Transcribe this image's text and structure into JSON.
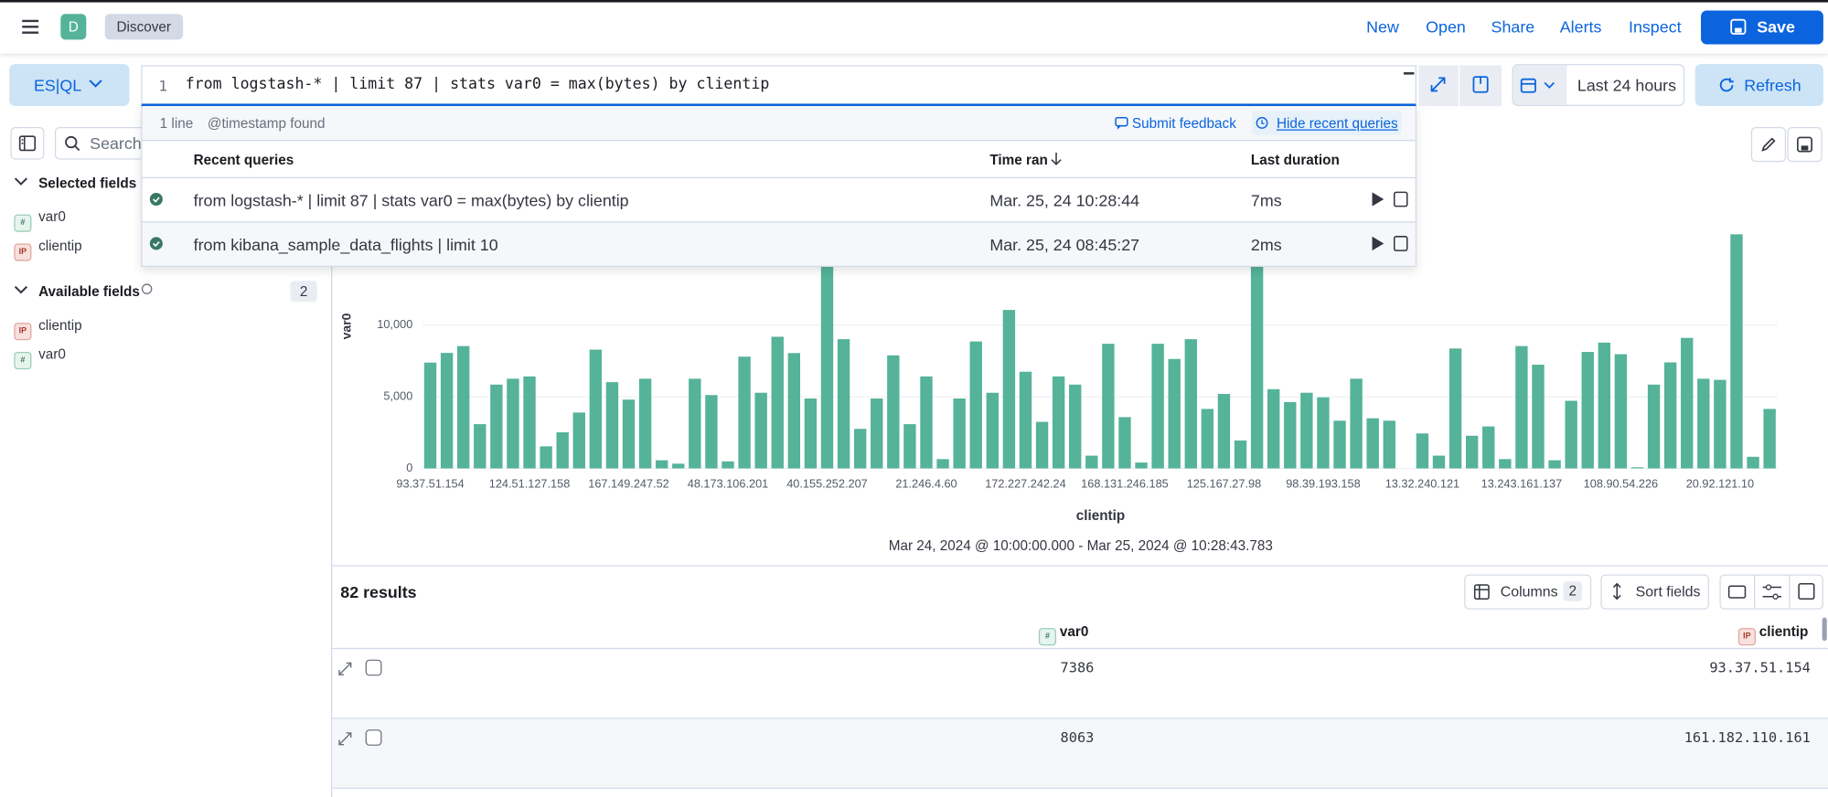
{
  "header": {
    "badge": "D",
    "breadcrumb": "Discover",
    "nav": [
      "New",
      "Open",
      "Share",
      "Alerts",
      "Inspect"
    ],
    "save": "Save"
  },
  "query_bar": {
    "language": "ES|QL",
    "line_number": "1",
    "query": "from logstash-* | limit 87 | stats  var0 = max(bytes) by clientip",
    "date_range": "Last 24 hours",
    "refresh": "Refresh"
  },
  "query_footer": {
    "lines": "1 line",
    "timestamp": "@timestamp found",
    "feedback": "Submit feedback",
    "hide": "Hide recent queries"
  },
  "recent_queries": {
    "columns": [
      "Recent queries",
      "Time ran",
      "Last duration"
    ],
    "rows": [
      [
        "from logstash-* | limit 87 | stats var0 = max(bytes) by clientip",
        "Mar. 25, 24 10:28:44",
        "7ms"
      ],
      [
        "from kibana_sample_data_flights | limit 10",
        "Mar. 25, 24 08:45:27",
        "2ms"
      ]
    ]
  },
  "sidebar": {
    "search": "Search",
    "selected_title": "Selected fields",
    "selected": [
      {
        "type": "#",
        "name": "var0"
      },
      {
        "type": "IP",
        "name": "clientip"
      }
    ],
    "available_title": "Available fields",
    "available_count": "2",
    "available": [
      {
        "type": "IP",
        "name": "clientip"
      },
      {
        "type": "#",
        "name": "var0"
      }
    ]
  },
  "chart_data": {
    "type": "bar",
    "x_label": "clientip",
    "y_label": "var0",
    "subtitle": "Mar 24, 2024 @ 10:00:00.000 - Mar 25, 2024 @ 10:28:43.783",
    "color": "#54b399",
    "grid": true,
    "categories": [
      "93.37.51.154",
      null,
      null,
      null,
      null,
      null,
      "124.51.127.158",
      null,
      null,
      null,
      null,
      null,
      "167.149.247.52",
      null,
      null,
      null,
      null,
      null,
      "48.173.106.201",
      null,
      null,
      null,
      null,
      null,
      "40.155.252.207",
      null,
      null,
      null,
      null,
      null,
      "21.246.4.60",
      null,
      null,
      null,
      null,
      null,
      "172.227.242.24",
      null,
      null,
      null,
      null,
      null,
      "168.131.246.185",
      null,
      null,
      null,
      null,
      null,
      "125.167.27.98",
      null,
      null,
      null,
      null,
      null,
      "98.39.193.158",
      null,
      null,
      null,
      null,
      null,
      "13.32.240.121",
      null,
      null,
      null,
      null,
      null,
      "13.243.161.137",
      null,
      null,
      null,
      null,
      null,
      "108.90.54.226",
      null,
      null,
      null,
      null,
      null,
      "20.92.121.10",
      null,
      null,
      null
    ],
    "values": [
      7386,
      8063,
      8540,
      3090,
      5850,
      6260,
      6420,
      1540,
      2520,
      3900,
      8290,
      6020,
      4800,
      6260,
      570,
      330,
      6260,
      5120,
      490,
      7800,
      5280,
      9190,
      8050,
      4880,
      15000,
      9020,
      2760,
      4880,
      7890,
      3090,
      6420,
      650,
      4880,
      8860,
      5280,
      11060,
      6750,
      3250,
      6420,
      5850,
      890,
      8700,
      3580,
      410,
      8700,
      7640,
      9020,
      4150,
      5200,
      1950,
      14500,
      5530,
      4630,
      5280,
      4960,
      3330,
      6260,
      3500,
      3330,
      0,
      2440,
      890,
      8370,
      2280,
      2930,
      650,
      8540,
      7240,
      570,
      4720,
      8130,
      8780,
      7970,
      80,
      5850,
      7400,
      9110,
      6260,
      6180,
      16340,
      810,
      4150
    ],
    "ylim": [
      0,
      19600
    ],
    "yticks": [
      0,
      {
        "value": 5000,
        "label": "5,000"
      },
      {
        "value": 10000,
        "label": "10,000"
      }
    ]
  },
  "results": {
    "count": "82 results",
    "columns_button": "Columns",
    "columns_count": "2",
    "sort": "Sort fields",
    "columns": [
      {
        "type": "#",
        "name": "var0"
      },
      {
        "type": "IP",
        "name": "clientip"
      }
    ],
    "rows": [
      [
        "7386",
        "93.37.51.154"
      ],
      [
        "8063",
        "161.182.110.161"
      ]
    ]
  }
}
